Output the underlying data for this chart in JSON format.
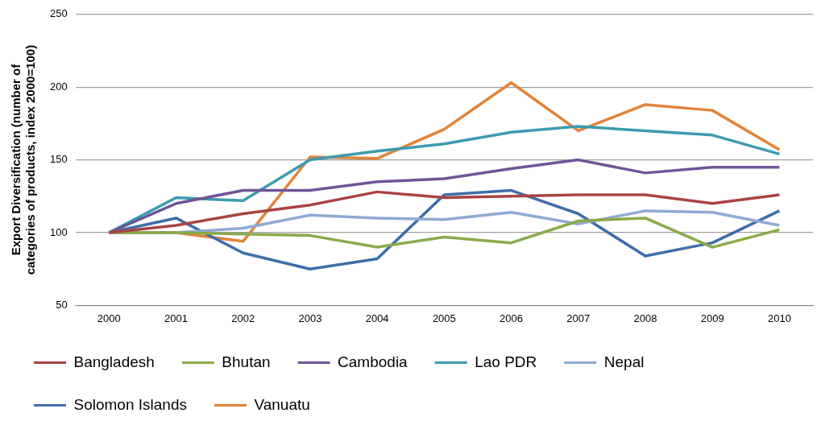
{
  "chart_data": {
    "type": "line",
    "ylabel": "Export Diversification (number of categories of products, index 2000=100)",
    "categories": [
      "2000",
      "2001",
      "2002",
      "2003",
      "2004",
      "2005",
      "2006",
      "2007",
      "2008",
      "2009",
      "2010"
    ],
    "series": [
      {
        "name": "Bangladesh",
        "color": "#a94442",
        "values": [
          100,
          105,
          113,
          119,
          128,
          124,
          125,
          126,
          126,
          120,
          126
        ]
      },
      {
        "name": "Bhutan",
        "color": "#8aaa4a",
        "values": [
          100,
          100,
          99,
          98,
          90,
          97,
          93,
          108,
          110,
          90,
          102
        ]
      },
      {
        "name": "Cambodia",
        "color": "#6f5597",
        "values": [
          100,
          120,
          129,
          129,
          135,
          137,
          144,
          150,
          141,
          145,
          145
        ]
      },
      {
        "name": "Lao PDR",
        "color": "#3d9bb0",
        "values": [
          100,
          124,
          122,
          150,
          156,
          161,
          169,
          173,
          170,
          167,
          154
        ]
      },
      {
        "name": "Nepal",
        "color": "#8fa9d3",
        "values": [
          100,
          100,
          103,
          112,
          110,
          109,
          114,
          106,
          115,
          114,
          105
        ]
      },
      {
        "name": "Solomon Islands",
        "color": "#3e6ea8",
        "values": [
          100,
          110,
          86,
          75,
          82,
          126,
          129,
          113,
          84,
          93,
          115
        ]
      },
      {
        "name": "Vanuatu",
        "color": "#e0843a",
        "values": [
          100,
          100,
          94,
          152,
          151,
          171,
          203,
          170,
          188,
          184,
          157
        ]
      }
    ],
    "ylim": [
      50,
      250
    ],
    "yticks": [
      50,
      100,
      150,
      200,
      250
    ],
    "grid": "y",
    "legend": "bottom",
    "marker": "none",
    "line_style": "solid"
  }
}
